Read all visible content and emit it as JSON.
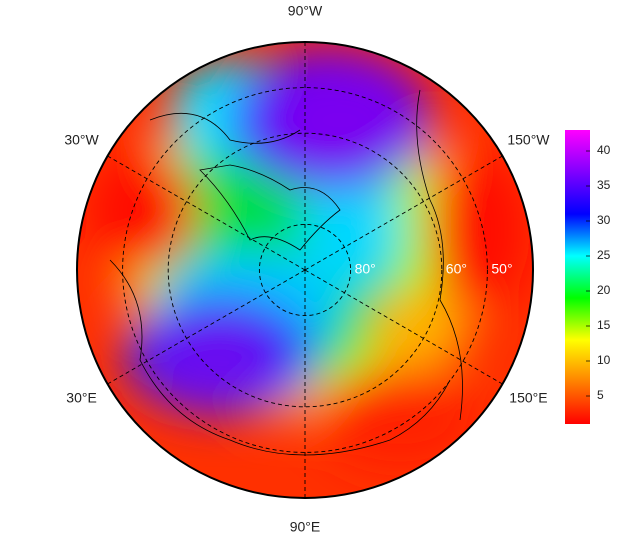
{
  "map": {
    "projection": "polar",
    "lat_range": [
      90,
      40
    ],
    "lat_circles": [
      {
        "value": 80,
        "label": "80°"
      },
      {
        "value": 60,
        "label": "60°"
      },
      {
        "value": 50,
        "label": "50°"
      }
    ],
    "lon_labels": [
      {
        "value": -90,
        "label": "90°W"
      },
      {
        "value": -30,
        "label": "30°W"
      },
      {
        "value": -150,
        "label": "150°W"
      },
      {
        "value": 30,
        "label": "30°E"
      },
      {
        "value": 150,
        "label": "150°E"
      },
      {
        "value": 90,
        "label": "90°E"
      }
    ],
    "colorbar": {
      "lim": [
        1,
        43
      ],
      "ticks": [
        5,
        10,
        15,
        20,
        25,
        30,
        35,
        40
      ],
      "colormap": [
        "#ff0000",
        "#ff8000",
        "#ffff00",
        "#00ff00",
        "#00ffff",
        "#0000ff",
        "#8000ff",
        "#ff00ff"
      ]
    }
  }
}
